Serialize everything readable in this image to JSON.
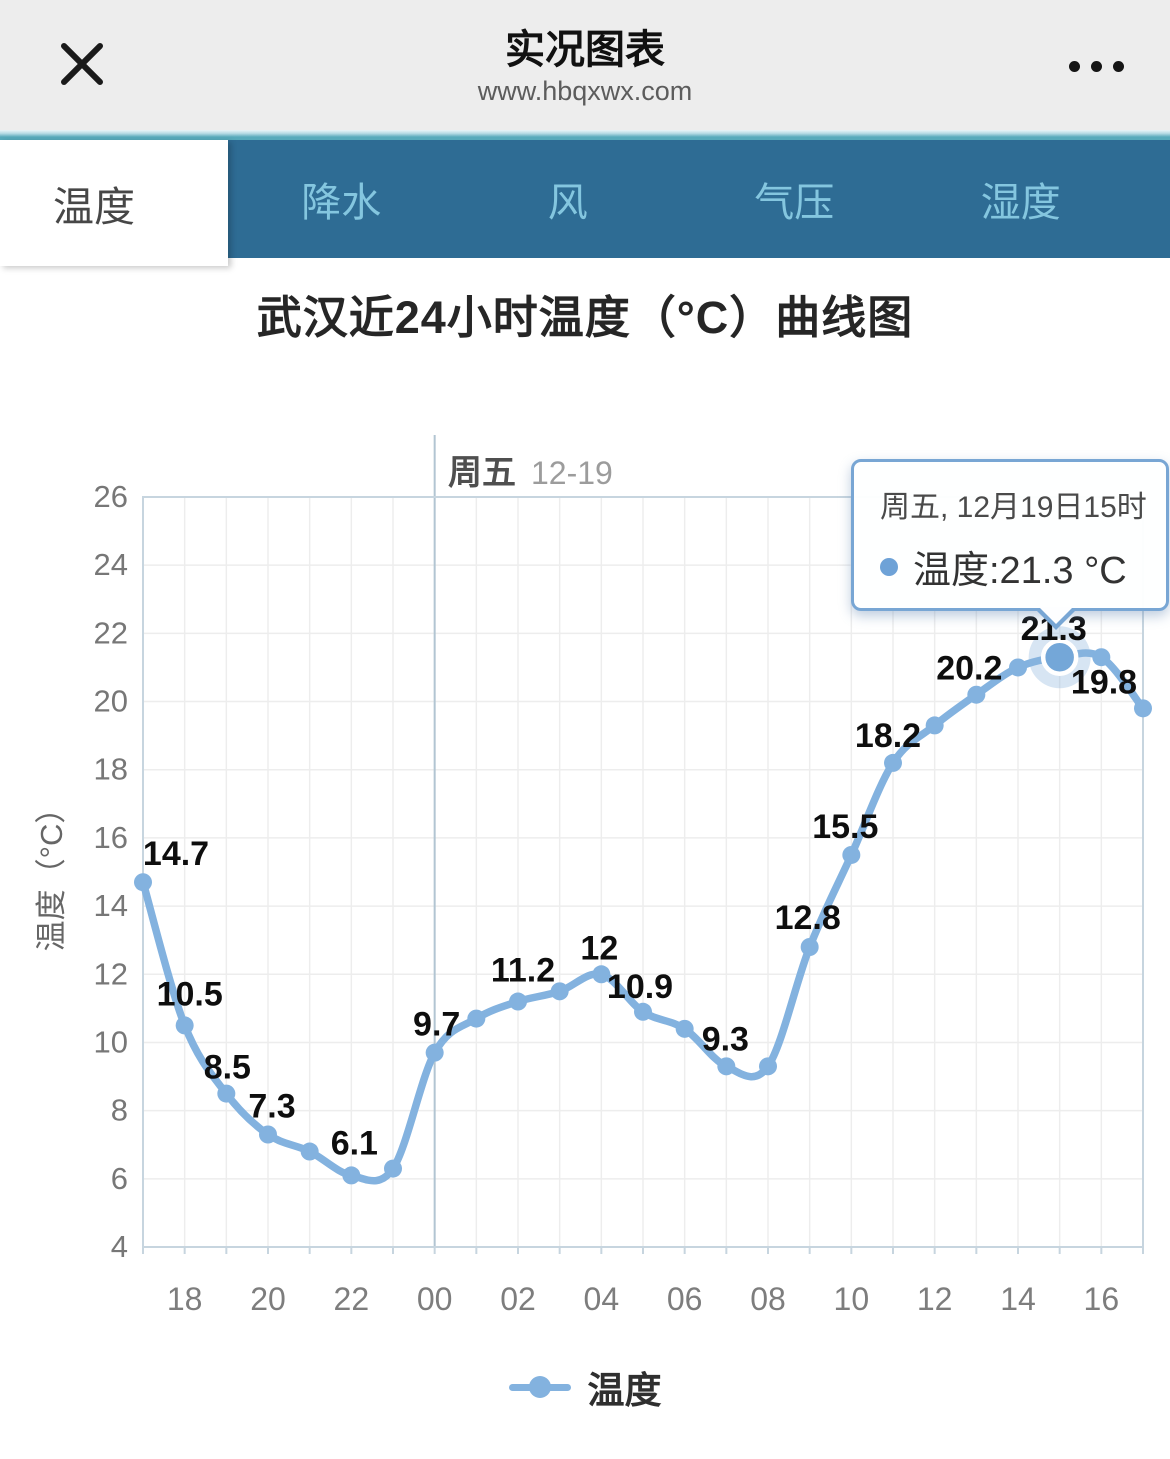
{
  "header": {
    "title": "实况图表",
    "subtitle": "www.hbqxwx.com"
  },
  "tabs": [
    {
      "label": "温度",
      "active": true
    },
    {
      "label": "降水",
      "active": false
    },
    {
      "label": "风",
      "active": false
    },
    {
      "label": "气压",
      "active": false
    },
    {
      "label": "湿度",
      "active": false
    }
  ],
  "chart_title": "武汉近24小时温度（°C）曲线图",
  "colors": {
    "header_bg": "#ededed",
    "tab_strip": "#57aabb",
    "tabbar_bg": "#2e6c94",
    "tab_inactive_text": "#84c6df",
    "series_line": "#83b2df",
    "highlight_point": "#74a7d8",
    "tooltip_border": "#78a6d4",
    "grid_line": "#ededed",
    "plot_border": "#c7d5df",
    "data_label": "#0e0e0e"
  },
  "tooltip": {
    "date_line": "周五, 12月19日15时",
    "value_line": "温度:21.3 °C"
  },
  "legend": {
    "label": "温度"
  },
  "chart_data": {
    "type": "line",
    "title": "武汉近24小时温度（°C）曲线图",
    "xlabel": "",
    "ylabel": "温度（°C）",
    "ylim": [
      4,
      26
    ],
    "y_tick_step": 2,
    "grid": true,
    "legend_position": "bottom",
    "x_tick_indices": [
      1,
      3,
      5,
      7,
      9,
      11,
      13,
      15,
      17,
      19,
      21,
      23
    ],
    "x_tick_labels": [
      "18",
      "20",
      "22",
      "00",
      "02",
      "04",
      "06",
      "08",
      "10",
      "12",
      "14",
      "16"
    ],
    "day_marker": {
      "index": 7,
      "label": "周五",
      "date": "12-19"
    },
    "highlight_index": 22,
    "series": [
      {
        "name": "温度",
        "unit": "°C",
        "points": [
          {
            "hour": "17",
            "value": 14.7,
            "label": "14.7",
            "dx": 33,
            "dy": -29
          },
          {
            "hour": "18",
            "value": 10.5,
            "label": "10.5",
            "dx": 5,
            "dy": -32
          },
          {
            "hour": "19",
            "value": 8.5,
            "label": "8.5",
            "dx": 1,
            "dy": -27
          },
          {
            "hour": "20",
            "value": 7.3,
            "label": "7.3",
            "dx": 4,
            "dy": -29
          },
          {
            "hour": "21",
            "value": 6.8
          },
          {
            "hour": "22",
            "value": 6.1,
            "label": "6.1",
            "dx": 3,
            "dy": -33
          },
          {
            "hour": "23",
            "value": 6.3
          },
          {
            "hour": "00",
            "value": 9.7,
            "label": "9.7",
            "dx": 2,
            "dy": -29
          },
          {
            "hour": "01",
            "value": 10.7
          },
          {
            "hour": "02",
            "value": 11.2,
            "label": "11.2",
            "dx": 5,
            "dy": -32
          },
          {
            "hour": "03",
            "value": 11.5
          },
          {
            "hour": "04",
            "value": 12,
            "label": "12",
            "dx": -2,
            "dy": -27
          },
          {
            "hour": "05",
            "value": 10.9,
            "label": "10.9",
            "dx": -3,
            "dy": -26
          },
          {
            "hour": "06",
            "value": 10.4
          },
          {
            "hour": "07",
            "value": 9.3,
            "label": "9.3",
            "dx": -1,
            "dy": -28
          },
          {
            "hour": "08",
            "value": 9.3
          },
          {
            "hour": "09",
            "value": 12.8,
            "label": "12.8",
            "dx": -2,
            "dy": -30
          },
          {
            "hour": "10",
            "value": 15.5,
            "label": "15.5",
            "dx": -6,
            "dy": -29
          },
          {
            "hour": "11",
            "value": 18.2,
            "label": "18.2",
            "dx": -5,
            "dy": -28
          },
          {
            "hour": "12",
            "value": 19.3
          },
          {
            "hour": "13",
            "value": 20.2,
            "label": "20.2",
            "dx": -7,
            "dy": -27
          },
          {
            "hour": "14",
            "value": 21
          },
          {
            "hour": "15",
            "value": 21.3,
            "label": "21.3",
            "dx": -6,
            "dy": -29
          },
          {
            "hour": "16",
            "value": 21.3
          },
          {
            "hour": "17",
            "value": 19.8,
            "label": "19.8",
            "dx": -39,
            "dy": -27
          }
        ]
      }
    ]
  }
}
